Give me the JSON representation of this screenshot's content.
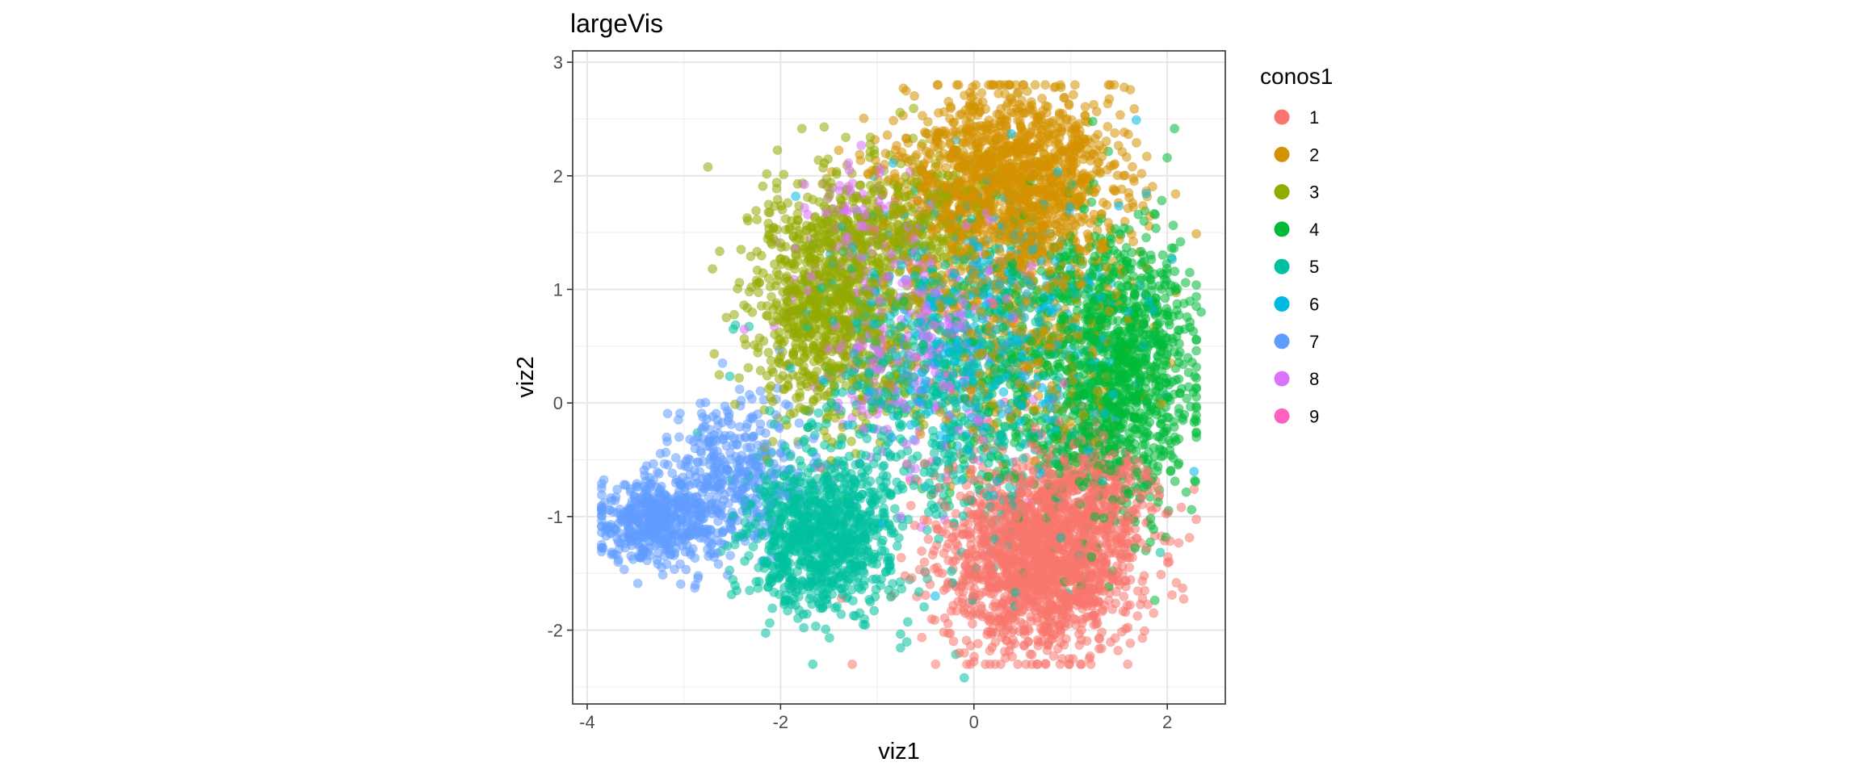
{
  "chart_data": {
    "type": "scatter",
    "title": "largeVis",
    "xlabel": "viz1",
    "ylabel": "viz2",
    "xlim": [
      -4.15,
      2.6
    ],
    "ylim": [
      -2.65,
      3.1
    ],
    "xticks": [
      -4,
      -2,
      0,
      2
    ],
    "yticks": [
      -2,
      -1,
      0,
      1,
      2,
      3
    ],
    "xtick_labels": [
      "-4",
      "-2",
      "0",
      "2"
    ],
    "ytick_labels": [
      "-2",
      "-1",
      "0",
      "1",
      "2",
      "3"
    ],
    "grid": true,
    "legend_position": "right",
    "legend_title": "conos1",
    "point_alpha": 0.55,
    "series": [
      {
        "name": "1",
        "color": "#F8766D",
        "clusters": [
          {
            "cx": 0.7,
            "cy": -1.35,
            "sx": 0.5,
            "sy": 0.42,
            "n": 1700
          },
          {
            "cx": 1.3,
            "cy": -0.8,
            "sx": 0.3,
            "sy": 0.3,
            "n": 250
          }
        ],
        "extra_points": [
          [
            -0.85,
            -1.7
          ],
          [
            -0.1,
            -2.2
          ]
        ]
      },
      {
        "name": "2",
        "color": "#D39200",
        "clusters": [
          {
            "cx": 0.35,
            "cy": 2.0,
            "sx": 0.55,
            "sy": 0.38,
            "n": 1300
          },
          {
            "cx": 0.5,
            "cy": 0.9,
            "sx": 0.6,
            "sy": 0.6,
            "n": 500
          }
        ],
        "extra_points": [
          [
            1.6,
            1.85
          ],
          [
            0.2,
            2.8
          ]
        ]
      },
      {
        "name": "3",
        "color": "#93AA00",
        "clusters": [
          {
            "cx": -1.5,
            "cy": 0.85,
            "sx": 0.42,
            "sy": 0.5,
            "n": 900
          },
          {
            "cx": -0.7,
            "cy": 1.55,
            "sx": 0.45,
            "sy": 0.35,
            "n": 350
          }
        ],
        "extra_points": [
          [
            -2.1,
            0.15
          ],
          [
            -1.9,
            -0.1
          ]
        ]
      },
      {
        "name": "4",
        "color": "#00BA38",
        "clusters": [
          {
            "cx": 1.55,
            "cy": 0.3,
            "sx": 0.35,
            "sy": 0.6,
            "n": 900
          },
          {
            "cx": 0.8,
            "cy": 0.2,
            "sx": 0.6,
            "sy": 0.7,
            "n": 500
          }
        ],
        "extra_points": [
          [
            2.35,
            0.8
          ],
          [
            1.8,
            -0.5
          ]
        ]
      },
      {
        "name": "5",
        "color": "#00C19F",
        "clusters": [
          {
            "cx": -1.6,
            "cy": -1.15,
            "sx": 0.38,
            "sy": 0.32,
            "n": 900
          },
          {
            "cx": -0.4,
            "cy": 0.0,
            "sx": 0.7,
            "sy": 0.75,
            "n": 600
          }
        ],
        "extra_points": [
          [
            -0.1,
            -2.42
          ]
        ]
      },
      {
        "name": "6",
        "color": "#00B9E3",
        "clusters": [
          {
            "cx": 0.1,
            "cy": 0.7,
            "sx": 0.75,
            "sy": 0.6,
            "n": 500
          }
        ],
        "extra_points": [
          [
            -0.4,
            -1.7
          ]
        ]
      },
      {
        "name": "7",
        "color": "#619CFF",
        "clusters": [
          {
            "cx": -3.3,
            "cy": -1.05,
            "sx": 0.32,
            "sy": 0.2,
            "n": 500
          },
          {
            "cx": -2.5,
            "cy": -0.6,
            "sx": 0.35,
            "sy": 0.35,
            "n": 350
          }
        ],
        "extra_points": [
          [
            -2.6,
            0.35
          ],
          [
            -3.05,
            -0.3
          ]
        ]
      },
      {
        "name": "8",
        "color": "#DB72FB",
        "clusters": [
          {
            "cx": -0.7,
            "cy": 0.6,
            "sx": 0.55,
            "sy": 0.6,
            "n": 300
          },
          {
            "cx": -1.2,
            "cy": 1.7,
            "sx": 0.25,
            "sy": 0.2,
            "n": 60
          }
        ],
        "extra_points": []
      },
      {
        "name": "9",
        "color": "#FF61C3",
        "clusters": [
          {
            "cx": -0.3,
            "cy": 0.2,
            "sx": 0.7,
            "sy": 0.7,
            "n": 40
          }
        ],
        "extra_points": []
      }
    ]
  }
}
